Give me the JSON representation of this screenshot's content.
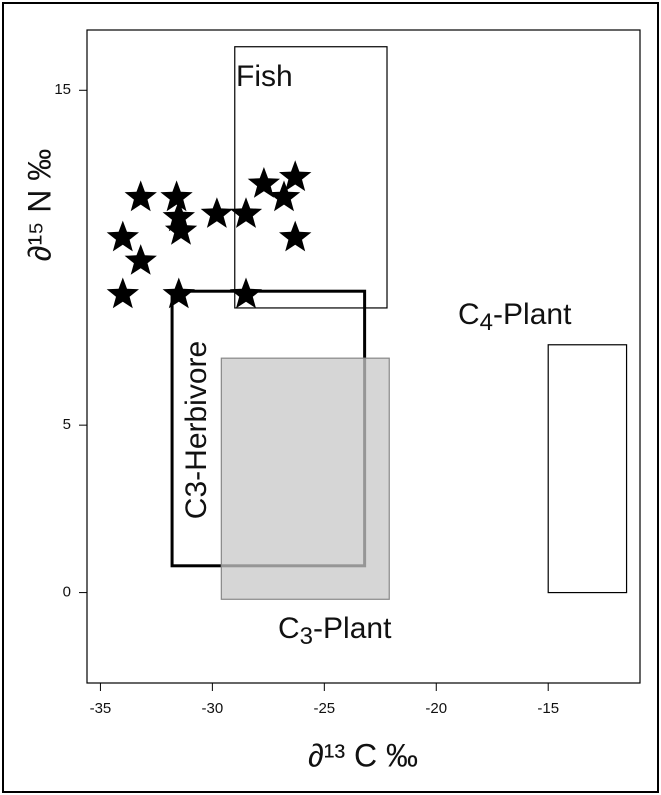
{
  "chart_data": {
    "type": "scatter",
    "x_label": "∂¹³ C ‰",
    "y_label": "∂¹⁵ N ‰",
    "xlim": [
      -35.6,
      -10.9
    ],
    "ylim": [
      -2.7,
      16.8
    ],
    "xticks": [
      -35,
      -30,
      -25,
      -20,
      -15
    ],
    "yticks": [
      0,
      5,
      15
    ],
    "series": [
      {
        "color": "#000000",
        "x": [
          -34.0,
          -33.2,
          -34.0,
          -33.2,
          -31.6,
          -31.5,
          -31.4,
          -31.5,
          -29.8,
          -28.5,
          -28.5,
          -27.7,
          -26.8,
          -26.3,
          -26.3
        ],
        "values": [
          10.6,
          11.8,
          8.9,
          9.9,
          11.8,
          11.2,
          10.8,
          8.9,
          11.3,
          11.3,
          8.9,
          12.2,
          11.8,
          12.4,
          10.6
        ]
      }
    ],
    "regions": [
      {
        "name": "Fish",
        "xlim": [
          -29.0,
          -22.2
        ],
        "ylim": [
          8.5,
          16.3
        ]
      },
      {
        "name": "C3-Herbivore",
        "xlim": [
          -31.8,
          -23.2
        ],
        "ylim": [
          0.8,
          9.0
        ]
      },
      {
        "name": "C3-Plant",
        "xlim": [
          -29.6,
          -22.1
        ],
        "ylim": [
          -0.2,
          7.0
        ]
      },
      {
        "name": "C4-Plant",
        "xlim": [
          -15.0,
          -11.5
        ],
        "ylim": [
          0.0,
          7.4
        ]
      }
    ]
  }
}
